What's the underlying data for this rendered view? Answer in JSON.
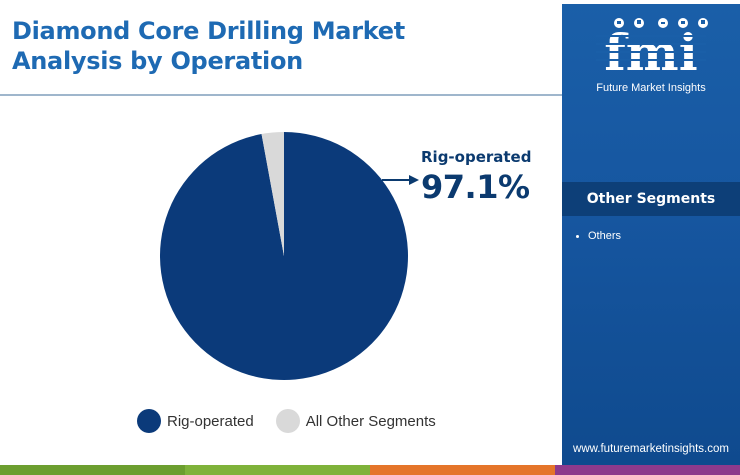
{
  "title": [
    "Diamond Core Drilling Market",
    "Analysis by Operation"
  ],
  "chart_data": {
    "type": "pie",
    "slices": [
      {
        "label": "Rig-operated",
        "value": 97.1,
        "color": "#0b3a7a"
      },
      {
        "label": "All Other Segments",
        "value": 2.9,
        "color": "#d9d9d9"
      }
    ]
  },
  "callout": {
    "label": "Rig-operated",
    "value": "97.1%"
  },
  "legend": [
    {
      "label": "Rig-operated",
      "color": "#0b3a7a"
    },
    {
      "label": "All Other Segments",
      "color": "#d9d9d9"
    }
  ],
  "sidebar": {
    "logo_text": "fmi",
    "logo_subtitle": "Future Market Insights",
    "section_title": "Other Segments",
    "items": [
      "Others"
    ],
    "website": "www.futuremarketinsights.com"
  },
  "colors": {
    "brand_blue": "#1e6ab3",
    "navy": "#0b3a7a",
    "bar": [
      "#6c9e2f",
      "#7fb23a",
      "#e5752a",
      "#8e3a8c"
    ]
  }
}
